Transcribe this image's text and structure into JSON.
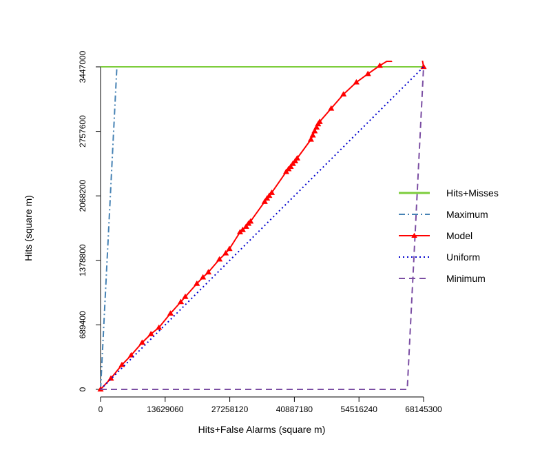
{
  "chart_data": {
    "type": "line",
    "xlabel": "Hits+False Alarms (square m)",
    "ylabel": "Hits (square m)",
    "xlim": [
      0,
      68145300
    ],
    "ylim": [
      0,
      3447000
    ],
    "x_ticks": [
      0,
      13629060,
      27258120,
      40887180,
      54516240,
      68145300
    ],
    "x_tick_labels": [
      "0",
      "13629060",
      "27258120",
      "40887180",
      "54516240",
      "68145300"
    ],
    "y_ticks": [
      0,
      689400,
      1378800,
      2068200,
      2757600,
      3447000
    ],
    "y_tick_labels": [
      "0",
      "689400",
      "1378800",
      "2068200",
      "2757600",
      "3447000"
    ],
    "legend_position": "right",
    "series": [
      {
        "name": "Hits+Misses",
        "color": "#7ccd3b",
        "style": "solid",
        "marker": "none",
        "points": [
          [
            0,
            3447000
          ],
          [
            68145300,
            3447000
          ]
        ]
      },
      {
        "name": "Maximum",
        "color": "#4682b4",
        "style": "dotdash",
        "marker": "none",
        "points": [
          [
            0,
            0
          ],
          [
            3447000,
            3447000
          ]
        ]
      },
      {
        "name": "Model",
        "color": "#ff0000",
        "style": "solid",
        "marker": "triangle",
        "points": [
          [
            0,
            0
          ],
          [
            2180000,
            117000
          ],
          [
            4510000,
            262000
          ],
          [
            6470000,
            365000
          ],
          [
            8770000,
            500000
          ],
          [
            10640000,
            592000
          ],
          [
            12300000,
            660000
          ],
          [
            14750000,
            812000
          ],
          [
            16930000,
            935000
          ],
          [
            17870000,
            990000
          ],
          [
            20320000,
            1130000
          ],
          [
            21610000,
            1198000
          ],
          [
            22740000,
            1252000
          ],
          [
            25080000,
            1390000
          ],
          [
            26400000,
            1455000
          ],
          [
            27180000,
            1502000
          ],
          [
            29420000,
            1680000
          ],
          [
            29990000,
            1705000
          ],
          [
            30700000,
            1740000
          ],
          [
            31200000,
            1772000
          ],
          [
            31630000,
            1795000
          ],
          [
            34630000,
            2006000
          ],
          [
            35120000,
            2041000
          ],
          [
            35580000,
            2070000
          ],
          [
            36100000,
            2102000
          ],
          [
            39160000,
            2325000
          ],
          [
            39650000,
            2355000
          ],
          [
            40100000,
            2380000
          ],
          [
            40570000,
            2412000
          ],
          [
            41040000,
            2440000
          ],
          [
            41480000,
            2470000
          ],
          [
            44370000,
            2670000
          ],
          [
            44760000,
            2715000
          ],
          [
            45160000,
            2760000
          ],
          [
            45570000,
            2800000
          ],
          [
            45890000,
            2835000
          ],
          [
            46220000,
            2860000
          ],
          [
            48640000,
            3002000
          ],
          [
            51240000,
            3154000
          ],
          [
            53960000,
            3282000
          ],
          [
            56410000,
            3372000
          ],
          [
            58900000,
            3460000
          ],
          [
            60910000,
            3522000
          ],
          [
            62400000,
            3557000
          ],
          [
            63950000,
            3587000
          ],
          [
            65100000,
            3602000
          ],
          [
            66000000,
            3613000
          ],
          [
            66820000,
            3622000
          ],
          [
            67500000,
            3630000
          ],
          [
            68145300,
            3447000
          ]
        ]
      },
      {
        "name": "Uniform",
        "color": "#0000cd",
        "style": "dotted",
        "marker": "none",
        "points": [
          [
            0,
            0
          ],
          [
            68145300,
            3447000
          ]
        ]
      },
      {
        "name": "Minimum",
        "color": "#7b4ea3",
        "style": "dashed",
        "marker": "none",
        "points": [
          [
            0,
            0
          ],
          [
            64698300,
            0
          ],
          [
            68145300,
            3447000
          ]
        ]
      }
    ]
  }
}
